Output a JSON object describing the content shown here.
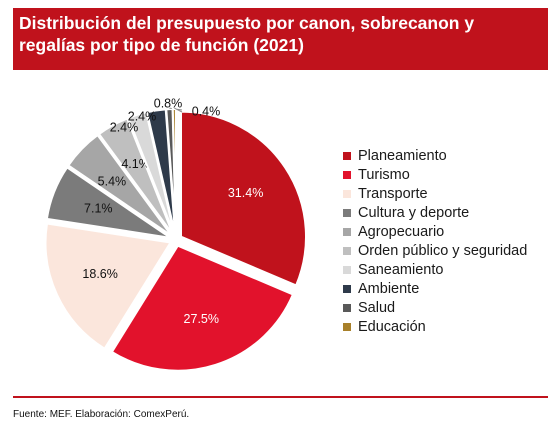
{
  "header": {
    "title": "Distribución del presupuesto por canon, sobrecanon y regalías por tipo de función (2021)"
  },
  "footer": {
    "source": "Fuente: MEF. Elaboración: ComexPerú."
  },
  "colors": {
    "title_background": "#c0121c",
    "title_text": "#ffffff"
  },
  "chart_data": {
    "type": "pie",
    "title": "Distribución del presupuesto por canon, sobrecanon y regalías por tipo de función (2021)",
    "legend_position": "right",
    "series": [
      {
        "name": "Planeamiento",
        "value": 31.4,
        "label": "31.4%",
        "color": "#c0121c"
      },
      {
        "name": "Turismo",
        "value": 27.5,
        "label": "27.5%",
        "color": "#e2122c"
      },
      {
        "name": "Transporte",
        "value": 18.6,
        "label": "18.6%",
        "color": "#fbe6dc"
      },
      {
        "name": "Cultura y deporte",
        "value": 7.1,
        "label": "7.1%",
        "color": "#7b7b7b"
      },
      {
        "name": "Agropecuario",
        "value": 5.4,
        "label": "5.4%",
        "color": "#a6a6a6"
      },
      {
        "name": "Orden público y seguridad",
        "value": 4.1,
        "label": "4.1%",
        "color": "#bfbfbf"
      },
      {
        "name": "Saneamiento",
        "value": 2.4,
        "label": "2.4%",
        "color": "#d9d9d9"
      },
      {
        "name": "Ambiente",
        "value": 2.4,
        "label": "2.4%",
        "color": "#2e3a4a"
      },
      {
        "name": "Salud",
        "value": 0.8,
        "label": "0.8%",
        "color": "#595959"
      },
      {
        "name": "Educación",
        "value": 0.4,
        "label": "0.4%",
        "color": "#a8802a"
      }
    ]
  }
}
